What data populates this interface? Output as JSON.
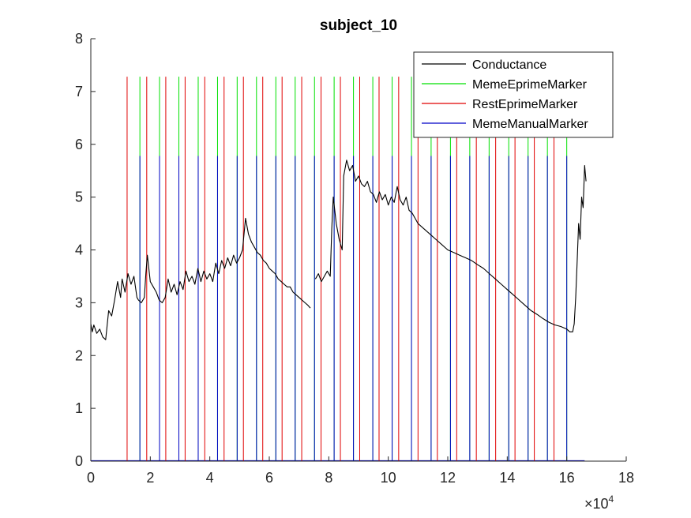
{
  "chart_data": {
    "type": "line",
    "title": "subject_10",
    "xlabel": "",
    "ylabel": "",
    "xlim": [
      0,
      18
    ],
    "ylim": [
      0,
      8
    ],
    "x_multiplier_label": {
      "base": "×10",
      "exponent": "4"
    },
    "x_ticks": [
      0,
      2,
      4,
      6,
      8,
      10,
      12,
      14,
      16,
      18
    ],
    "y_ticks": [
      0,
      1,
      2,
      3,
      4,
      5,
      6,
      7,
      8
    ],
    "grid": false,
    "legend_position": "top-right",
    "legend": [
      {
        "name": "Conductance",
        "color": "#000000"
      },
      {
        "name": "MemeEprimeMarker",
        "color": "#00e000"
      },
      {
        "name": "RestEprimeMarker",
        "color": "#e00000"
      },
      {
        "name": "MemeManualMarker",
        "color": "#0000c8"
      }
    ],
    "marker_heights": {
      "meme_eprime": 7.28,
      "rest_eprime": 7.28,
      "meme_manual": 5.78
    },
    "marker_x_end": 16.6,
    "rest_eprime_markers": [
      1.22,
      1.88,
      2.52,
      3.17,
      3.83,
      4.48,
      5.13,
      5.78,
      6.43,
      7.09,
      7.74,
      8.39,
      9.04,
      9.69,
      10.35,
      11.0,
      11.65,
      12.3,
      12.96,
      13.61,
      14.26,
      14.91,
      15.57
    ],
    "meme_eprime_markers": [
      1.65,
      2.31,
      2.96,
      3.61,
      4.26,
      4.92,
      5.57,
      6.22,
      6.87,
      7.52,
      8.18,
      8.83,
      9.48,
      10.13,
      10.78,
      11.44,
      12.09,
      12.74,
      13.39,
      14.05,
      14.7,
      15.35,
      16.0
    ],
    "meme_manual_markers": [
      1.65,
      2.31,
      2.96,
      3.61,
      4.26,
      4.92,
      5.57,
      6.22,
      6.87,
      7.52,
      8.18,
      8.83,
      9.48,
      10.13,
      10.78,
      11.44,
      12.09,
      12.74,
      13.39,
      14.05,
      14.7,
      15.35,
      16.0
    ],
    "series": [
      {
        "name": "Conductance",
        "color": "#000000",
        "segments": [
          {
            "x": [
              0.0,
              0.05,
              0.1,
              0.2,
              0.3,
              0.4,
              0.5,
              0.6,
              0.7,
              0.8,
              0.9,
              1.0,
              1.05,
              1.15,
              1.25,
              1.35,
              1.45,
              1.55,
              1.6,
              1.7,
              1.8,
              1.85,
              1.9,
              2.0,
              2.1,
              2.2,
              2.3,
              2.4,
              2.5,
              2.6,
              2.7,
              2.8,
              2.9,
              3.0,
              3.1,
              3.2,
              3.3,
              3.4,
              3.5,
              3.6,
              3.7,
              3.8,
              3.9,
              4.0,
              4.1,
              4.2,
              4.3,
              4.4,
              4.5,
              4.6,
              4.7,
              4.8,
              4.9,
              5.0,
              5.1,
              5.2,
              5.3,
              5.4,
              5.5,
              5.6,
              5.7,
              5.8,
              5.9,
              6.0,
              6.1,
              6.2,
              6.3,
              6.4,
              6.5,
              6.6,
              6.7,
              6.8,
              6.9,
              7.0,
              7.1,
              7.2,
              7.3,
              7.38
            ],
            "y": [
              2.6,
              2.45,
              2.58,
              2.42,
              2.5,
              2.35,
              2.3,
              2.85,
              2.75,
              3.05,
              3.4,
              3.1,
              3.45,
              3.2,
              3.55,
              3.35,
              3.5,
              3.1,
              3.05,
              3.0,
              3.1,
              3.55,
              3.9,
              3.4,
              3.3,
              3.2,
              3.05,
              3.0,
              3.1,
              3.45,
              3.2,
              3.35,
              3.15,
              3.4,
              3.25,
              3.6,
              3.4,
              3.5,
              3.35,
              3.65,
              3.4,
              3.6,
              3.45,
              3.55,
              3.4,
              3.75,
              3.55,
              3.8,
              3.65,
              3.85,
              3.7,
              3.9,
              3.75,
              3.85,
              4.0,
              4.6,
              4.3,
              4.15,
              4.05,
              3.95,
              3.9,
              3.8,
              3.75,
              3.65,
              3.6,
              3.55,
              3.45,
              3.4,
              3.35,
              3.3,
              3.3,
              3.2,
              3.15,
              3.1,
              3.05,
              3.0,
              2.95,
              2.9
            ]
          },
          {
            "x": [
              7.55,
              7.65,
              7.75,
              7.85,
              7.95,
              8.05,
              8.1,
              8.15,
              8.25,
              8.35,
              8.45,
              8.5,
              8.6,
              8.7,
              8.8,
              8.9,
              9.0,
              9.1,
              9.2,
              9.3,
              9.4,
              9.5,
              9.6,
              9.7,
              9.8,
              9.9,
              10.0,
              10.1,
              10.2,
              10.3,
              10.4,
              10.5,
              10.6,
              10.7,
              10.8,
              10.9,
              11.0,
              11.2,
              11.4,
              11.6,
              11.8,
              12.0,
              12.2,
              12.4,
              12.6,
              12.8,
              13.0,
              13.2,
              13.4,
              13.6,
              13.8,
              14.0,
              14.2,
              14.4,
              14.6,
              14.8,
              15.0,
              15.2,
              15.4,
              15.6,
              15.8,
              16.0,
              16.1,
              16.2,
              16.25,
              16.3,
              16.35,
              16.4,
              16.45,
              16.5,
              16.55,
              16.6,
              16.65
            ],
            "y": [
              3.45,
              3.55,
              3.4,
              3.5,
              3.6,
              3.5,
              4.4,
              5.0,
              4.5,
              4.2,
              4.0,
              5.4,
              5.7,
              5.5,
              5.6,
              5.3,
              5.4,
              5.25,
              5.2,
              5.3,
              5.1,
              5.05,
              4.9,
              5.1,
              4.95,
              5.05,
              4.85,
              5.0,
              4.9,
              5.2,
              4.95,
              4.85,
              5.0,
              4.75,
              4.7,
              4.6,
              4.5,
              4.4,
              4.3,
              4.2,
              4.1,
              4.0,
              3.95,
              3.9,
              3.85,
              3.8,
              3.72,
              3.65,
              3.55,
              3.45,
              3.35,
              3.25,
              3.15,
              3.05,
              2.95,
              2.85,
              2.78,
              2.7,
              2.63,
              2.58,
              2.55,
              2.5,
              2.45,
              2.45,
              2.6,
              3.1,
              3.8,
              4.5,
              4.2,
              5.0,
              4.8,
              5.6,
              5.3
            ]
          }
        ]
      }
    ]
  }
}
